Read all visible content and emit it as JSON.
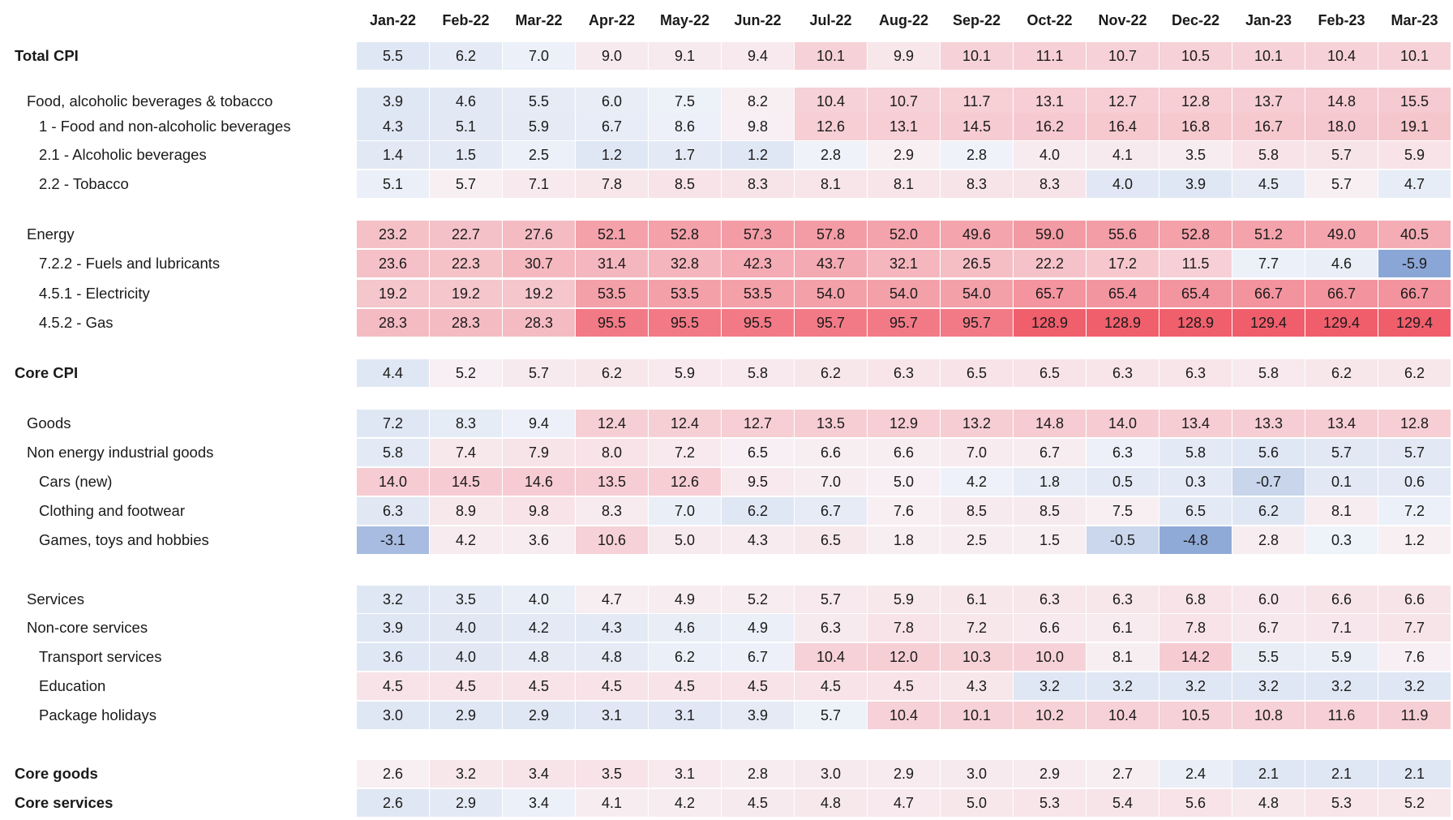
{
  "chart_data": {
    "type": "heatmap",
    "title": "",
    "colors": {
      "negative": "#8aa6d6",
      "neutral": "#f8f9fc",
      "positive": "#f05a68"
    },
    "columns": [
      "Jan-22",
      "Feb-22",
      "Mar-22",
      "Apr-22",
      "May-22",
      "Jun-22",
      "Jul-22",
      "Aug-22",
      "Sep-22",
      "Oct-22",
      "Nov-22",
      "Dec-22",
      "Jan-23",
      "Feb-23",
      "Mar-23"
    ],
    "rows": [
      {
        "label": "Total CPI",
        "bold": true,
        "indent": 0,
        "values": [
          "5.5",
          "6.2",
          "7.0",
          "9.0",
          "9.1",
          "9.4",
          "10.1",
          "9.9",
          "10.1",
          "11.1",
          "10.7",
          "10.5",
          "10.1",
          "10.4",
          "10.1"
        ]
      },
      {
        "label": "Food, alcoholic beverages & tobacco",
        "bold": false,
        "indent": 1,
        "values": [
          "3.9",
          "4.6",
          "5.5",
          "6.0",
          "7.5",
          "8.2",
          "10.4",
          "10.7",
          "11.7",
          "13.1",
          "12.7",
          "12.8",
          "13.7",
          "14.8",
          "15.5"
        ]
      },
      {
        "label": "1 - Food and non-alcoholic beverages",
        "bold": false,
        "indent": 2,
        "values": [
          "4.3",
          "5.1",
          "5.9",
          "6.7",
          "8.6",
          "9.8",
          "12.6",
          "13.1",
          "14.5",
          "16.2",
          "16.4",
          "16.8",
          "16.7",
          "18.0",
          "19.1"
        ]
      },
      {
        "label": "2.1 - Alcoholic beverages",
        "bold": false,
        "indent": 2,
        "values": [
          "1.4",
          "1.5",
          "2.5",
          "1.2",
          "1.7",
          "1.2",
          "2.8",
          "2.9",
          "2.8",
          "4.0",
          "4.1",
          "3.5",
          "5.8",
          "5.7",
          "5.9"
        ]
      },
      {
        "label": "2.2 - Tobacco",
        "bold": false,
        "indent": 2,
        "values": [
          "5.1",
          "5.7",
          "7.1",
          "7.8",
          "8.5",
          "8.3",
          "8.1",
          "8.1",
          "8.3",
          "8.3",
          "4.0",
          "3.9",
          "4.5",
          "5.7",
          "4.7"
        ]
      },
      {
        "label": "Energy",
        "bold": false,
        "indent": 1,
        "values": [
          "23.2",
          "22.7",
          "27.6",
          "52.1",
          "52.8",
          "57.3",
          "57.8",
          "52.0",
          "49.6",
          "59.0",
          "55.6",
          "52.8",
          "51.2",
          "49.0",
          "40.5"
        ]
      },
      {
        "label": "7.2.2 - Fuels and lubricants",
        "bold": false,
        "indent": 2,
        "values": [
          "23.6",
          "22.3",
          "30.7",
          "31.4",
          "32.8",
          "42.3",
          "43.7",
          "32.1",
          "26.5",
          "22.2",
          "17.2",
          "11.5",
          "7.7",
          "4.6",
          "-5.9"
        ]
      },
      {
        "label": "4.5.1 - Electricity",
        "bold": false,
        "indent": 2,
        "values": [
          "19.2",
          "19.2",
          "19.2",
          "53.5",
          "53.5",
          "53.5",
          "54.0",
          "54.0",
          "54.0",
          "65.7",
          "65.4",
          "65.4",
          "66.7",
          "66.7",
          "66.7"
        ]
      },
      {
        "label": "4.5.2 - Gas",
        "bold": false,
        "indent": 2,
        "values": [
          "28.3",
          "28.3",
          "28.3",
          "95.5",
          "95.5",
          "95.5",
          "95.7",
          "95.7",
          "95.7",
          "128.9",
          "128.9",
          "128.9",
          "129.4",
          "129.4",
          "129.4"
        ]
      },
      {
        "label": "Core CPI",
        "bold": true,
        "indent": 0,
        "values": [
          "4.4",
          "5.2",
          "5.7",
          "6.2",
          "5.9",
          "5.8",
          "6.2",
          "6.3",
          "6.5",
          "6.5",
          "6.3",
          "6.3",
          "5.8",
          "6.2",
          "6.2"
        ]
      },
      {
        "label": "Goods",
        "bold": false,
        "indent": 1,
        "values": [
          "7.2",
          "8.3",
          "9.4",
          "12.4",
          "12.4",
          "12.7",
          "13.5",
          "12.9",
          "13.2",
          "14.8",
          "14.0",
          "13.4",
          "13.3",
          "13.4",
          "12.8"
        ]
      },
      {
        "label": "Non energy industrial goods",
        "bold": false,
        "indent": 1,
        "values": [
          "5.8",
          "7.4",
          "7.9",
          "8.0",
          "7.2",
          "6.5",
          "6.6",
          "6.6",
          "7.0",
          "6.7",
          "6.3",
          "5.8",
          "5.6",
          "5.7",
          "5.7"
        ]
      },
      {
        "label": "Cars (new)",
        "bold": false,
        "indent": 2,
        "values": [
          "14.0",
          "14.5",
          "14.6",
          "13.5",
          "12.6",
          "9.5",
          "7.0",
          "5.0",
          "4.2",
          "1.8",
          "0.5",
          "0.3",
          "-0.7",
          "0.1",
          "0.6"
        ]
      },
      {
        "label": "Clothing and footwear",
        "bold": false,
        "indent": 2,
        "values": [
          "6.3",
          "8.9",
          "9.8",
          "8.3",
          "7.0",
          "6.2",
          "6.7",
          "7.6",
          "8.5",
          "8.5",
          "7.5",
          "6.5",
          "6.2",
          "8.1",
          "7.2"
        ]
      },
      {
        "label": "Games, toys and hobbies",
        "bold": false,
        "indent": 2,
        "values": [
          "-3.1",
          "4.2",
          "3.6",
          "10.6",
          "5.0",
          "4.3",
          "6.5",
          "1.8",
          "2.5",
          "1.5",
          "-0.5",
          "-4.8",
          "2.8",
          "0.3",
          "1.2"
        ]
      },
      {
        "label": "Services",
        "bold": false,
        "indent": 1,
        "values": [
          "3.2",
          "3.5",
          "4.0",
          "4.7",
          "4.9",
          "5.2",
          "5.7",
          "5.9",
          "6.1",
          "6.3",
          "6.3",
          "6.8",
          "6.0",
          "6.6",
          "6.6"
        ]
      },
      {
        "label": "Non-core services",
        "bold": false,
        "indent": 1,
        "values": [
          "3.9",
          "4.0",
          "4.2",
          "4.3",
          "4.6",
          "4.9",
          "6.3",
          "7.8",
          "7.2",
          "6.6",
          "6.1",
          "7.8",
          "6.7",
          "7.1",
          "7.7"
        ]
      },
      {
        "label": "Transport services",
        "bold": false,
        "indent": 2,
        "values": [
          "3.6",
          "4.0",
          "4.8",
          "4.8",
          "6.2",
          "6.7",
          "10.4",
          "12.0",
          "10.3",
          "10.0",
          "8.1",
          "14.2",
          "5.5",
          "5.9",
          "7.6"
        ]
      },
      {
        "label": "Education",
        "bold": false,
        "indent": 2,
        "values": [
          "4.5",
          "4.5",
          "4.5",
          "4.5",
          "4.5",
          "4.5",
          "4.5",
          "4.5",
          "4.3",
          "3.2",
          "3.2",
          "3.2",
          "3.2",
          "3.2",
          "3.2"
        ]
      },
      {
        "label": "Package holidays",
        "bold": false,
        "indent": 2,
        "values": [
          "3.0",
          "2.9",
          "2.9",
          "3.1",
          "3.1",
          "3.9",
          "5.7",
          "10.4",
          "10.1",
          "10.2",
          "10.4",
          "10.5",
          "10.8",
          "11.6",
          "11.9"
        ]
      },
      {
        "label": "Core goods",
        "bold": true,
        "indent": 0,
        "values": [
          "2.6",
          "3.2",
          "3.4",
          "3.5",
          "3.1",
          "2.8",
          "3.0",
          "2.9",
          "3.0",
          "2.9",
          "2.7",
          "2.4",
          "2.1",
          "2.1",
          "2.1"
        ]
      },
      {
        "label": "Core services",
        "bold": true,
        "indent": 0,
        "values": [
          "2.6",
          "2.9",
          "3.4",
          "4.1",
          "4.2",
          "4.5",
          "4.8",
          "4.7",
          "5.0",
          "5.3",
          "5.4",
          "5.6",
          "4.8",
          "5.3",
          "5.2"
        ]
      }
    ]
  }
}
